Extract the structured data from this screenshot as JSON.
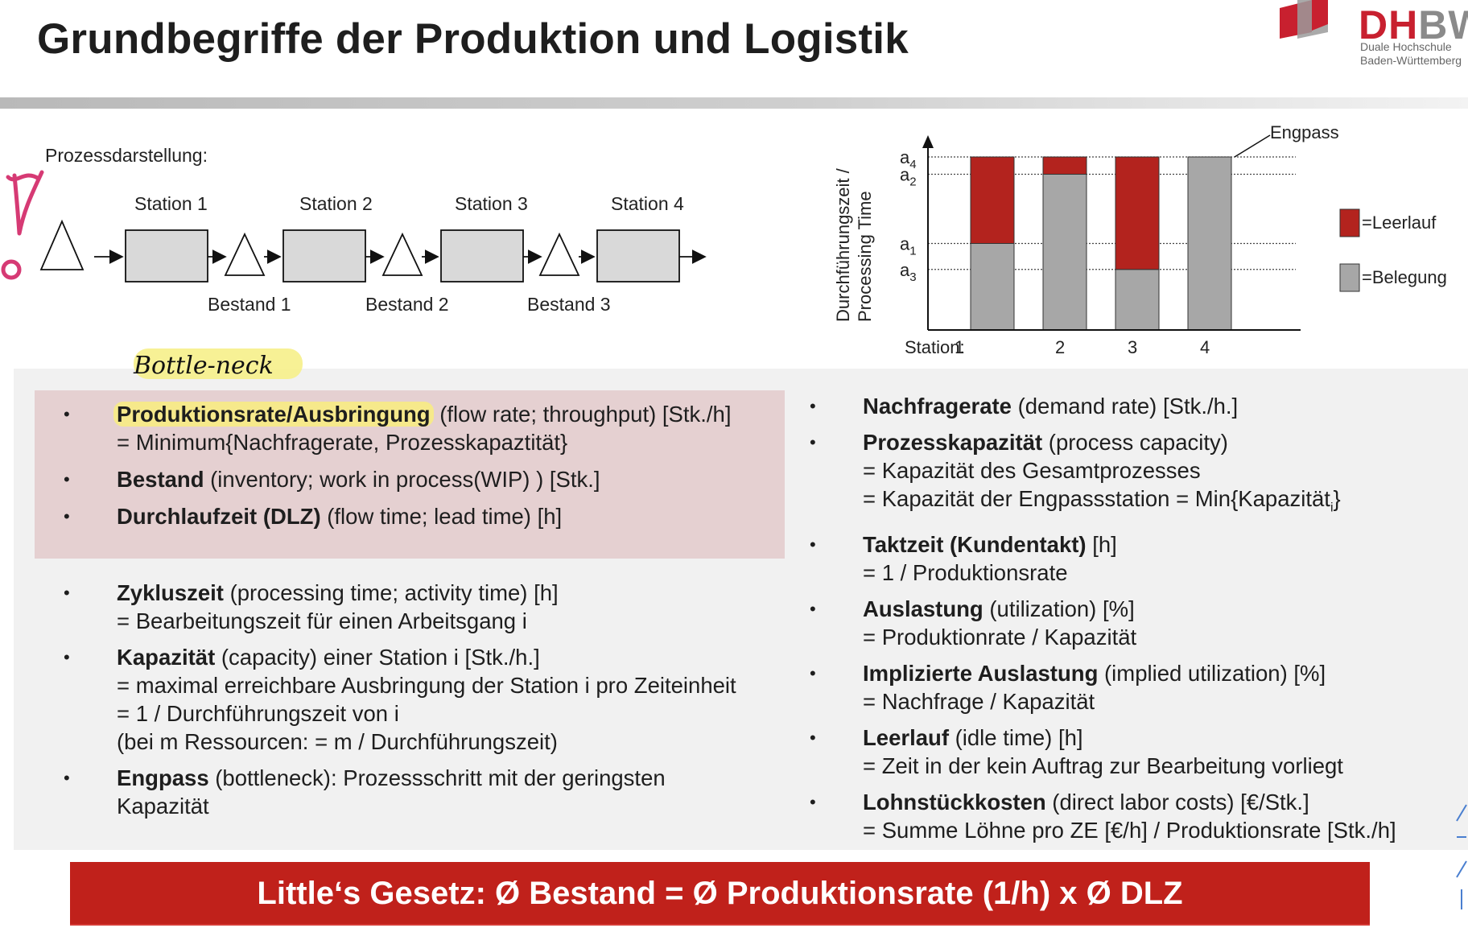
{
  "title": "Grundbegriffe der Produktion und Logistik",
  "logo": {
    "mark_a": "DH",
    "mark_b": "BW",
    "line1": "Duale Hochschule",
    "line2": "Baden-Württemberg"
  },
  "process": {
    "heading": "Prozessdarstellung:",
    "stations": [
      "Station 1",
      "Station 2",
      "Station 3",
      "Station 4"
    ],
    "inventories": [
      "Bestand 1",
      "Bestand 2",
      "Bestand 3"
    ]
  },
  "chart_data": {
    "type": "bar",
    "stacked": true,
    "ylabel_line1": "Durchführungszeit /",
    "ylabel_line2": "Processing Time",
    "xlabel": "Station:",
    "categories": [
      "1",
      "2",
      "3",
      "4"
    ],
    "y_ticks": [
      {
        "label": "a",
        "sub": "4",
        "value": 4.0
      },
      {
        "label": "a",
        "sub": "2",
        "value": 3.6
      },
      {
        "label": "a",
        "sub": "1",
        "value": 2.0
      },
      {
        "label": "a",
        "sub": "3",
        "value": 1.4
      }
    ],
    "series": [
      {
        "name": "=Belegung",
        "color": "#a7a7a7",
        "values": [
          2.0,
          3.6,
          1.4,
          4.0
        ]
      },
      {
        "name": "=Leerlauf",
        "color": "#b3231e",
        "values": [
          2.0,
          0.4,
          2.6,
          0.0
        ]
      }
    ],
    "annotation": "Engpass",
    "legend_position": "right"
  },
  "left_a": [
    {
      "term": "Produktionsrate/Ausbringung",
      "rest": " (flow rate; throughput) [Stk./h]",
      "cont": [
        "= Minimum{Nachfragerate, Prozesskapaztität}"
      ]
    },
    {
      "term": "Bestand",
      "rest": " (inventory; work in process(WIP) ) [Stk.]",
      "cont": []
    },
    {
      "term": "Durchlaufzeit (DLZ)",
      "rest": " (flow time; lead time) [h]",
      "cont": []
    }
  ],
  "left_b": [
    {
      "term": "Zykluszeit",
      "rest": " (processing time; activity time) [h]",
      "cont": [
        "= Bearbeitungszeit für einen Arbeitsgang i"
      ]
    },
    {
      "term": "Kapazität",
      "rest": " (capacity) einer Station i [Stk./h.]",
      "cont": [
        "= maximal erreichbare Ausbringung der Station i pro Zeiteinheit",
        "= 1 / Durchführungszeit von i",
        "(bei m Ressourcen: = m / Durchführungszeit)"
      ]
    },
    {
      "term": "Engpass",
      "rest": " (bottleneck): Prozessschritt mit der geringsten",
      "cont": [
        "Kapazität"
      ]
    }
  ],
  "right": [
    {
      "term": "Nachfragerate",
      "rest": " (demand rate) [Stk./h.]",
      "cont": []
    },
    {
      "term": "Prozesskapazität",
      "rest": " (process capacity)",
      "cont": [
        "= Kapazität des Gesamtprozesses",
        "= Kapazität der Engpassstation = Min{Kapazität"
      ],
      "sub": "i",
      "after": "}"
    },
    {
      "term": "Taktzeit (Kundentakt)",
      "rest": " [h]",
      "cont": [
        "= 1 / Produktionsrate"
      ]
    },
    {
      "term": "Auslastung",
      "rest": " (utilization) [%]",
      "cont": [
        "= Produktionrate / Kapazität"
      ]
    },
    {
      "term": "Implizierte Auslastung",
      "rest": " (implied utilization) [%]",
      "cont": [
        "= Nachfrage / Kapazität"
      ]
    },
    {
      "term": "Leerlauf",
      "rest": " (idle time) [h]",
      "cont": [
        "= Zeit in der kein Auftrag zur Bearbeitung vorliegt"
      ]
    },
    {
      "term": "Lohnstückkosten",
      "rest": " (direct labor costs) [€/Stk.]",
      "cont": [
        "= Summe Löhne pro ZE [€/h] / Produktionsrate [Stk./h]"
      ]
    }
  ],
  "bullet": "•",
  "handwritten_note": "Bottle-neck",
  "footer": "Little‘s Gesetz: Ø Bestand = Ø Produktionsrate (1/h) x Ø DLZ",
  "colors": {
    "accent_red": "#c0211b",
    "bar_red": "#b3231e",
    "bar_gray": "#a7a7a7",
    "highlight": "#f6e98b",
    "pink_box": "#e5d0d1"
  }
}
